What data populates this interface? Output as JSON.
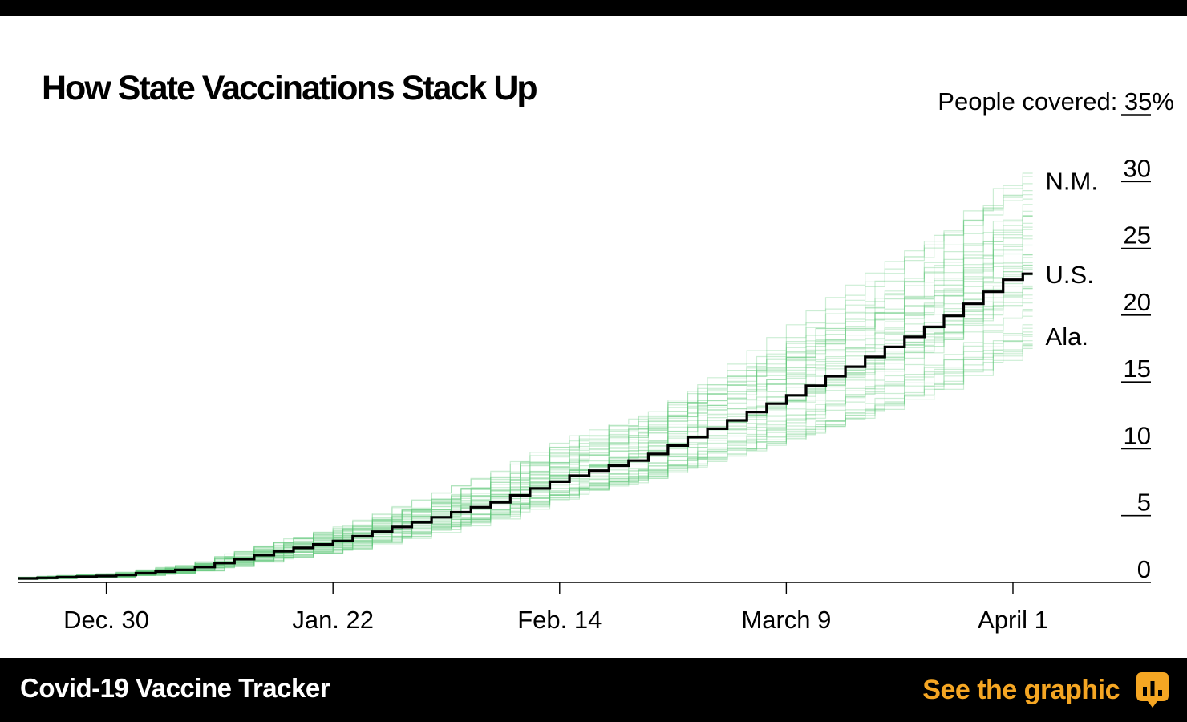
{
  "header": {
    "title": "How State Vaccinations Stack Up"
  },
  "footer": {
    "tracker_title": "Covid-19 Vaccine Tracker",
    "link_label": "See the graphic",
    "link_icon": "bar-chart-icon",
    "accent_color": "#f5a623"
  },
  "chart_data": {
    "type": "line",
    "title": "How State Vaccinations Stack Up",
    "ylabel": "People covered:",
    "y_unit": "%",
    "ylim": [
      0,
      35
    ],
    "y_ticks": [
      0,
      5,
      10,
      15,
      20,
      25,
      30,
      35
    ],
    "xlim": [
      "2020-12-21",
      "2021-04-15"
    ],
    "x_ticks": [
      {
        "date": "2020-12-30",
        "label": "Dec. 30"
      },
      {
        "date": "2021-01-22",
        "label": "Jan. 22"
      },
      {
        "date": "2021-02-14",
        "label": "Feb. 14"
      },
      {
        "date": "2021-03-09",
        "label": "March 9"
      },
      {
        "date": "2021-04-01",
        "label": "April 1"
      }
    ],
    "grid": false,
    "step": true,
    "colors": {
      "highlight": "#000000",
      "states": "#5fc77a"
    },
    "series": [
      {
        "name": "U.S.",
        "highlight": true,
        "points": [
          [
            "2020-12-21",
            0.3
          ],
          [
            "2020-12-30",
            0.5
          ],
          [
            "2021-01-07",
            1.0
          ],
          [
            "2021-01-15",
            2.2
          ],
          [
            "2021-01-22",
            3.1
          ],
          [
            "2021-01-30",
            4.5
          ],
          [
            "2021-02-07",
            6.0
          ],
          [
            "2021-02-14",
            7.8
          ],
          [
            "2021-02-22",
            9.3
          ],
          [
            "2021-03-01",
            11.5
          ],
          [
            "2021-03-09",
            14.0
          ],
          [
            "2021-03-16",
            16.5
          ],
          [
            "2021-03-24",
            19.5
          ],
          [
            "2021-04-01",
            23.1
          ],
          [
            "2021-04-03",
            23.1
          ]
        ]
      },
      {
        "name": "N.M.",
        "end_value": 30.1
      },
      {
        "name": "Ala.",
        "end_value": 18.5
      }
    ],
    "state_lines": {
      "count": 50,
      "end_range": [
        18.5,
        30.1
      ],
      "end_date": "2021-04-03"
    }
  }
}
